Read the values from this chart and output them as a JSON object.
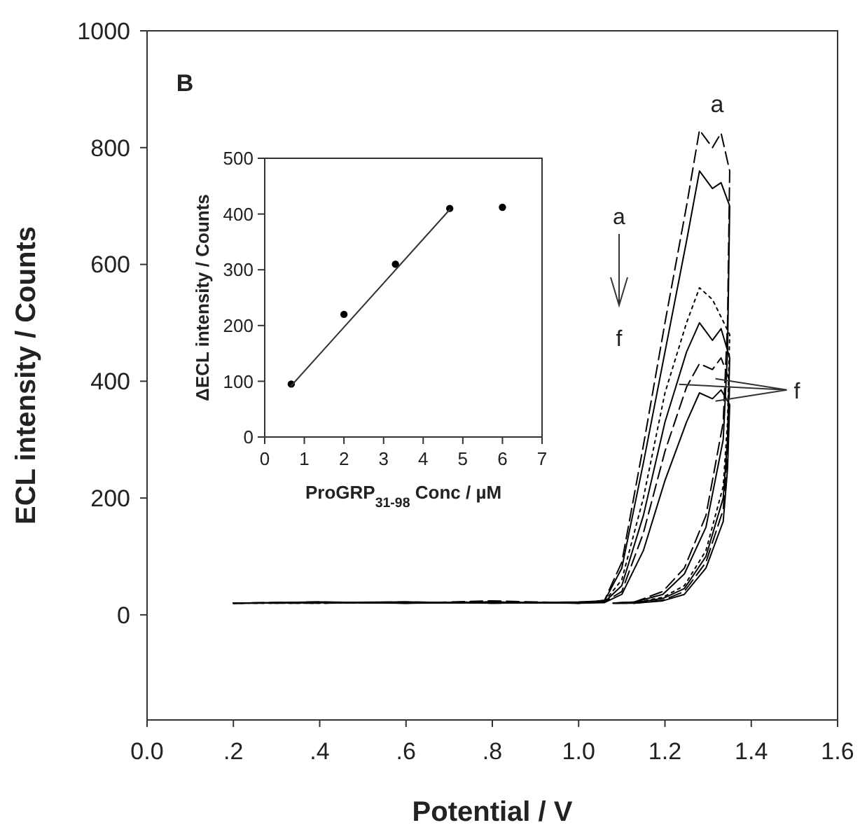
{
  "chart_data": [
    {
      "type": "line",
      "xlabel": "Potential / V",
      "ylabel": "ECL intensity / Counts",
      "xlim": [
        0,
        1.6
      ],
      "xticks": [
        {
          "value": 0,
          "label": "0.0"
        },
        {
          "value": 0.2,
          "label": ".2"
        },
        {
          "value": 0.4,
          "label": ".4"
        },
        {
          "value": 0.6,
          "label": ".6"
        },
        {
          "value": 0.8,
          "label": ".8"
        },
        {
          "value": 1.0,
          "label": "1.0"
        },
        {
          "value": 1.2,
          "label": "1.2"
        },
        {
          "value": 1.4,
          "label": "1.4"
        },
        {
          "value": 1.6,
          "label": "1.6"
        }
      ],
      "ylim": [
        -180,
        1000
      ],
      "yticks": [
        0,
        200,
        400,
        600,
        800,
        1000
      ],
      "series": [
        {
          "color": "#000000",
          "line_style": "dashed",
          "x": [
            0.2,
            0.4,
            0.6,
            0.8,
            1.0,
            1.06,
            1.1,
            1.15,
            1.2,
            1.25,
            1.28,
            1.31,
            1.33,
            1.35,
            1.345,
            1.335,
            1.295,
            1.245,
            1.195,
            1.13,
            1.08
          ],
          "values": [
            20,
            22,
            20,
            24,
            20,
            25,
            90,
            290,
            500,
            700,
            830,
            800,
            825,
            760,
            500,
            330,
            170,
            80,
            40,
            22,
            20
          ]
        },
        {
          "color": "#000000",
          "line_style": "solid",
          "x": [
            0.2,
            0.4,
            0.6,
            0.8,
            1.0,
            1.06,
            1.1,
            1.15,
            1.2,
            1.25,
            1.28,
            1.31,
            1.33,
            1.35,
            1.345,
            1.335,
            1.295,
            1.245,
            1.195,
            1.13,
            1.08
          ],
          "values": [
            20,
            21,
            22,
            20,
            22,
            24,
            80,
            260,
            450,
            640,
            760,
            730,
            740,
            700,
            450,
            300,
            150,
            70,
            35,
            22,
            20
          ]
        },
        {
          "color": "#000000",
          "line_style": "dotted",
          "x": [
            0.2,
            0.4,
            0.6,
            0.8,
            1.0,
            1.06,
            1.1,
            1.15,
            1.2,
            1.25,
            1.28,
            1.31,
            1.33,
            1.35,
            1.345,
            1.335,
            1.295,
            1.245,
            1.195,
            1.13,
            1.08
          ],
          "values": [
            20,
            20,
            21,
            22,
            20,
            23,
            60,
            200,
            380,
            500,
            560,
            540,
            510,
            480,
            330,
            220,
            110,
            50,
            30,
            21,
            20
          ]
        },
        {
          "color": "#000000",
          "line_style": "solid",
          "x": [
            0.2,
            0.4,
            0.6,
            0.8,
            1.0,
            1.06,
            1.1,
            1.15,
            1.2,
            1.25,
            1.28,
            1.31,
            1.33,
            1.35,
            1.345,
            1.335,
            1.295,
            1.245,
            1.195,
            1.13,
            1.08
          ],
          "values": [
            20,
            22,
            20,
            21,
            20,
            22,
            50,
            170,
            330,
            450,
            500,
            470,
            490,
            440,
            300,
            200,
            100,
            45,
            28,
            21,
            20
          ]
        },
        {
          "color": "#000000",
          "line_style": "dashed",
          "x": [
            0.2,
            0.4,
            0.6,
            0.8,
            1.0,
            1.06,
            1.1,
            1.15,
            1.2,
            1.25,
            1.28,
            1.31,
            1.33,
            1.35,
            1.345,
            1.335,
            1.295,
            1.245,
            1.195,
            1.13,
            1.08
          ],
          "values": [
            20,
            20,
            22,
            20,
            21,
            22,
            40,
            140,
            280,
            390,
            430,
            420,
            440,
            400,
            280,
            180,
            90,
            40,
            25,
            20,
            20
          ]
        },
        {
          "color": "#000000",
          "line_style": "solid",
          "x": [
            0.2,
            0.4,
            0.6,
            0.8,
            1.0,
            1.06,
            1.1,
            1.15,
            1.2,
            1.25,
            1.28,
            1.31,
            1.33,
            1.35,
            1.345,
            1.335,
            1.295,
            1.245,
            1.195,
            1.13,
            1.08
          ],
          "values": [
            20,
            21,
            20,
            22,
            20,
            21,
            35,
            110,
            230,
            330,
            380,
            370,
            385,
            360,
            250,
            160,
            80,
            35,
            24,
            20,
            20
          ]
        }
      ],
      "annotations": [
        "B",
        "a",
        "a",
        "f",
        {
          "text": "f",
          "x": 1.33,
          "y": 385
        }
      ]
    },
    {
      "type": "scatter",
      "xlabel": "ProGRP$_{31-98}$ Conc / µM",
      "ylabel": "ΔECL intensity / Counts",
      "xlim": [
        0,
        7
      ],
      "xticks": [
        0,
        1,
        2,
        3,
        4,
        5,
        6,
        7
      ],
      "ylim": [
        0,
        500
      ],
      "yticks": [
        0,
        100,
        200,
        300,
        400,
        500
      ],
      "series": [
        {
          "marker": "circle",
          "color": "#000000",
          "x": [
            0.67,
            2.0,
            3.3,
            4.67,
            6.0
          ],
          "values": [
            95,
            220,
            310,
            410,
            412
          ]
        },
        {
          "type": "line",
          "color": "#333333",
          "line_style": "solid",
          "x": [
            0.67,
            4.67
          ],
          "values": [
            92,
            408
          ]
        }
      ]
    }
  ]
}
